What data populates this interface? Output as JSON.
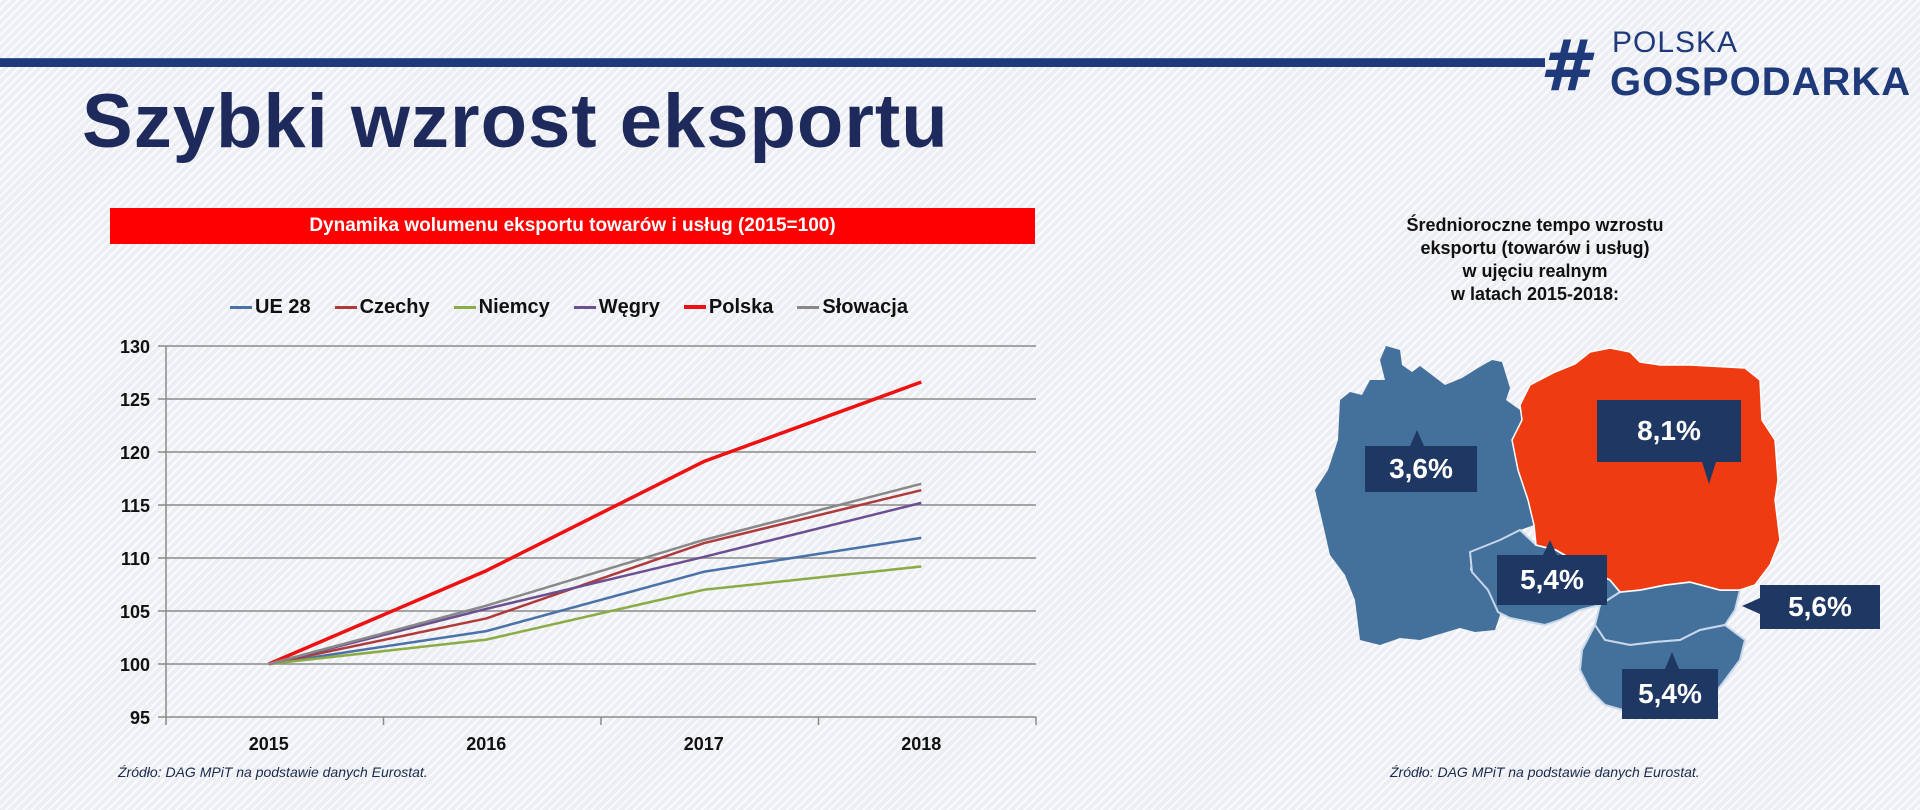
{
  "header": {
    "title": "Szybki wzrost eksportu",
    "logo": {
      "icon": "hash-icon",
      "line1": "POLSKA",
      "line2": "GOSPODARKA",
      "color": "#1f3a7a"
    }
  },
  "left_panel": {
    "chart_title": "Dynamika wolumenu eksportu towarów i usług (2015=100)",
    "source": "Źródło: DAG MPiT na podstawie danych Eurostat."
  },
  "right_panel": {
    "title_lines": [
      "Średnioroczne tempo wzrostu",
      "eksportu (towarów i usług)",
      "w ujęciu realnym",
      "w latach 2015-2018:"
    ],
    "callouts": {
      "germany": "3,6%",
      "poland": "8,1%",
      "czechia": "5,4%",
      "slovakia": "5,6%",
      "hungary": "5,4%"
    },
    "colors": {
      "highlight": "#ef3b12",
      "base": "#44709c",
      "callout_bg": "#1f3763"
    },
    "source": "Źródło: DAG MPiT na podstawie danych Eurostat."
  },
  "chart_data": [
    {
      "type": "line",
      "title": "Dynamika wolumenu eksportu towarów i usług (2015=100)",
      "xlabel": "",
      "ylabel": "",
      "categories": [
        "2015",
        "2016",
        "2017",
        "2018"
      ],
      "ylim": [
        95,
        130
      ],
      "yticks": [
        95,
        100,
        105,
        110,
        115,
        120,
        125,
        130
      ],
      "grid": true,
      "legend_position": "top",
      "series": [
        {
          "name": "UE 28",
          "color": "#4a72a8",
          "values": [
            100,
            103.1,
            108.7,
            111.9
          ]
        },
        {
          "name": "Czechy",
          "color": "#b0393a",
          "values": [
            100,
            104.3,
            111.4,
            116.4
          ]
        },
        {
          "name": "Niemcy",
          "color": "#8bab45",
          "values": [
            100,
            102.3,
            107.0,
            109.2
          ]
        },
        {
          "name": "Węgry",
          "color": "#6b4f91",
          "values": [
            100,
            105.2,
            110.1,
            115.2
          ]
        },
        {
          "name": "Polska",
          "color": "#ee1111",
          "values": [
            100,
            108.8,
            119.1,
            126.6
          ]
        },
        {
          "name": "Słowacja",
          "color": "#888888",
          "values": [
            100,
            105.5,
            111.7,
            117.0
          ]
        }
      ]
    },
    {
      "type": "table",
      "title": "Średnioroczne tempo wzrostu eksportu (towarów i usług) w ujęciu realnym w latach 2015-2018:",
      "categories": [
        "Niemcy",
        "Polska",
        "Czechy",
        "Słowacja",
        "Węgry"
      ],
      "values": [
        "3,6%",
        "8,1%",
        "5,4%",
        "5,6%",
        "5,4%"
      ]
    }
  ]
}
